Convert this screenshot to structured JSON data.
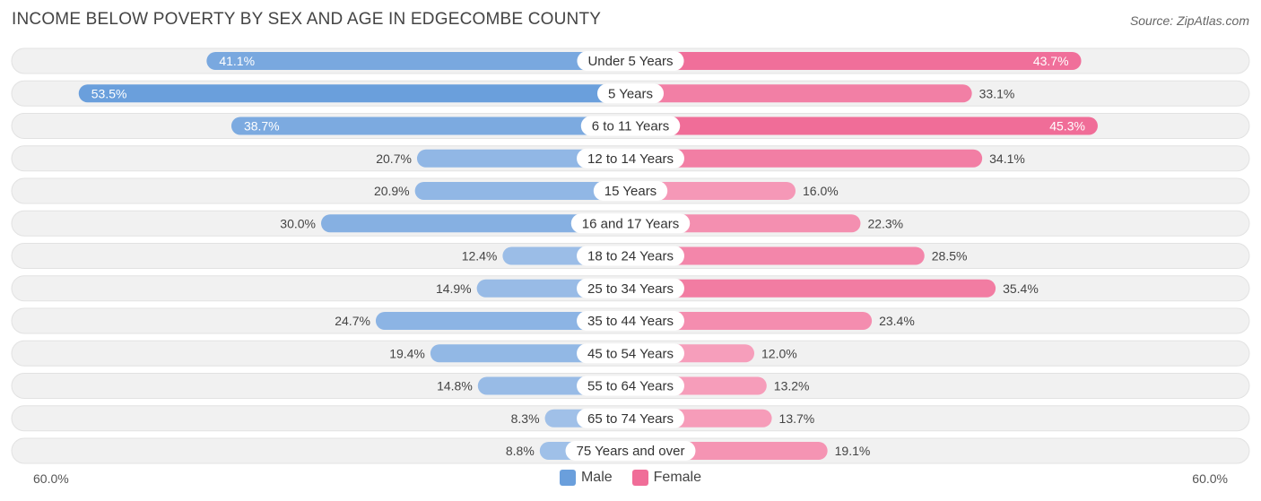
{
  "header": {
    "title": "INCOME BELOW POVERTY BY SEX AND AGE IN EDGECOMBE COUNTY",
    "source": "Source: ZipAtlas.com"
  },
  "axis": {
    "left_label": "60.0%",
    "right_label": "60.0%"
  },
  "legend": {
    "male_label": "Male",
    "female_label": "Female"
  },
  "colors": {
    "male": "#6a9fdc",
    "male_light": "#a9c6ea",
    "female": "#f06d98",
    "female_light": "#f7a7c1",
    "row_bg": "#f1f1f1"
  },
  "chart_data": {
    "type": "bar",
    "orientation": "horizontal-diverging",
    "title": "INCOME BELOW POVERTY BY SEX AND AGE IN EDGECOMBE COUNTY",
    "xlim": [
      -60,
      60
    ],
    "categories": [
      "Under 5 Years",
      "5 Years",
      "6 to 11 Years",
      "12 to 14 Years",
      "15 Years",
      "16 and 17 Years",
      "18 to 24 Years",
      "25 to 34 Years",
      "35 to 44 Years",
      "45 to 54 Years",
      "55 to 64 Years",
      "65 to 74 Years",
      "75 Years and over"
    ],
    "series": [
      {
        "name": "Male",
        "values": [
          41.1,
          53.5,
          38.7,
          20.7,
          20.9,
          30.0,
          12.4,
          14.9,
          24.7,
          19.4,
          14.8,
          8.3,
          8.8
        ],
        "labels": [
          "41.1%",
          "53.5%",
          "38.7%",
          "20.7%",
          "20.9%",
          "30.0%",
          "12.4%",
          "14.9%",
          "24.7%",
          "19.4%",
          "14.8%",
          "8.3%",
          "8.8%"
        ]
      },
      {
        "name": "Female",
        "values": [
          43.7,
          33.1,
          45.3,
          34.1,
          16.0,
          22.3,
          28.5,
          35.4,
          23.4,
          12.0,
          13.2,
          13.7,
          19.1
        ],
        "labels": [
          "43.7%",
          "33.1%",
          "45.3%",
          "34.1%",
          "16.0%",
          "22.3%",
          "28.5%",
          "35.4%",
          "23.4%",
          "12.0%",
          "13.2%",
          "13.7%",
          "19.1%"
        ]
      }
    ]
  }
}
